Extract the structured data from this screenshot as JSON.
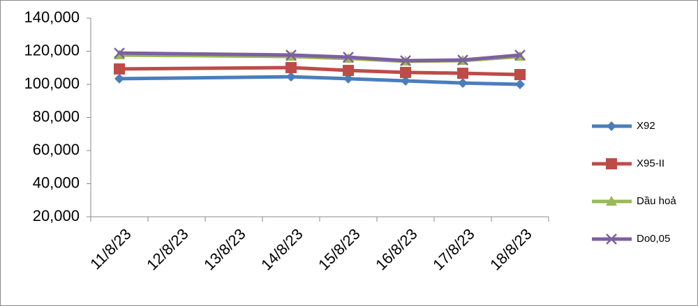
{
  "chart_data": {
    "type": "line",
    "categories": [
      "11/8/23",
      "12/8/23",
      "13/8/23",
      "14/8/23",
      "15/8/23",
      "16/8/23",
      "17/8/23",
      "18/8/23"
    ],
    "series": [
      {
        "name": "X92",
        "color": "#4a7ebb",
        "marker": "diamond",
        "values": [
          103400,
          null,
          null,
          104600,
          103400,
          102100,
          100800,
          100000
        ]
      },
      {
        "name": "X95-II",
        "color": "#be4b48",
        "marker": "square",
        "values": [
          109300,
          null,
          null,
          110100,
          108400,
          107200,
          106700,
          105900
        ]
      },
      {
        "name": "Dầu hoả",
        "color": "#98b954",
        "marker": "triangle",
        "values": [
          117700,
          null,
          null,
          116800,
          115600,
          113900,
          114300,
          116800
        ]
      },
      {
        "name": "Do0,05",
        "color": "#7d60a0",
        "marker": "x",
        "values": [
          118900,
          null,
          null,
          117700,
          116400,
          114300,
          114700,
          117700
        ]
      }
    ],
    "ylim": [
      20000,
      140000
    ],
    "yticks": [
      {
        "value": 20000,
        "label": "20,000"
      },
      {
        "value": 40000,
        "label": "40,000"
      },
      {
        "value": 60000,
        "label": "60,000"
      },
      {
        "value": 80000,
        "label": "80,000"
      },
      {
        "value": 100000,
        "label": "100,000"
      },
      {
        "value": 120000,
        "label": "120,000"
      },
      {
        "value": 140000,
        "label": "140,000"
      }
    ],
    "grid": false,
    "legend": "right"
  }
}
